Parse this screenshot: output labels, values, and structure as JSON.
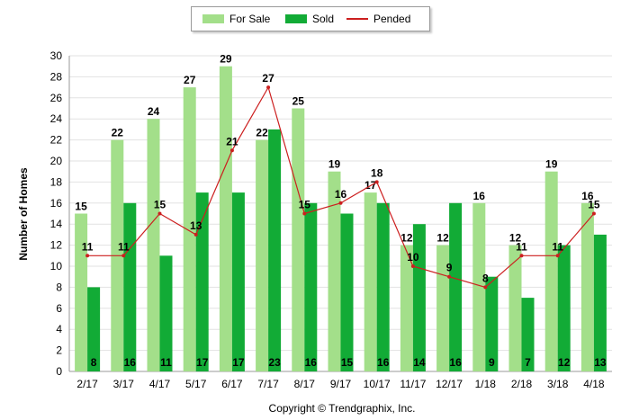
{
  "chart_data": {
    "type": "bar",
    "categories": [
      "2/17",
      "3/17",
      "4/17",
      "5/17",
      "6/17",
      "7/17",
      "8/17",
      "9/17",
      "10/17",
      "11/17",
      "12/17",
      "1/18",
      "2/18",
      "3/18",
      "4/18"
    ],
    "series": [
      {
        "name": "For Sale",
        "kind": "bar",
        "color": "#a3df8a",
        "values": [
          15,
          22,
          24,
          27,
          29,
          22,
          25,
          19,
          17,
          12,
          12,
          16,
          12,
          19,
          16
        ]
      },
      {
        "name": "Sold",
        "kind": "bar",
        "color": "#12ab36",
        "values": [
          8,
          16,
          11,
          17,
          17,
          23,
          16,
          15,
          16,
          14,
          16,
          9,
          7,
          12,
          13
        ]
      },
      {
        "name": "Pended",
        "kind": "line",
        "color": "#cc1f1f",
        "values": [
          11,
          11,
          15,
          13,
          21,
          27,
          15,
          16,
          18,
          10,
          9,
          8,
          11,
          11,
          15
        ]
      }
    ],
    "ylabel": "Number of Homes",
    "ylim": [
      0,
      30
    ],
    "yticks": [
      0,
      2,
      4,
      6,
      8,
      10,
      12,
      14,
      16,
      18,
      20,
      22,
      24,
      26,
      28,
      30
    ],
    "grid": true,
    "legend_position": "top-center",
    "footer": "Copyright © Trendgraphix, Inc."
  }
}
